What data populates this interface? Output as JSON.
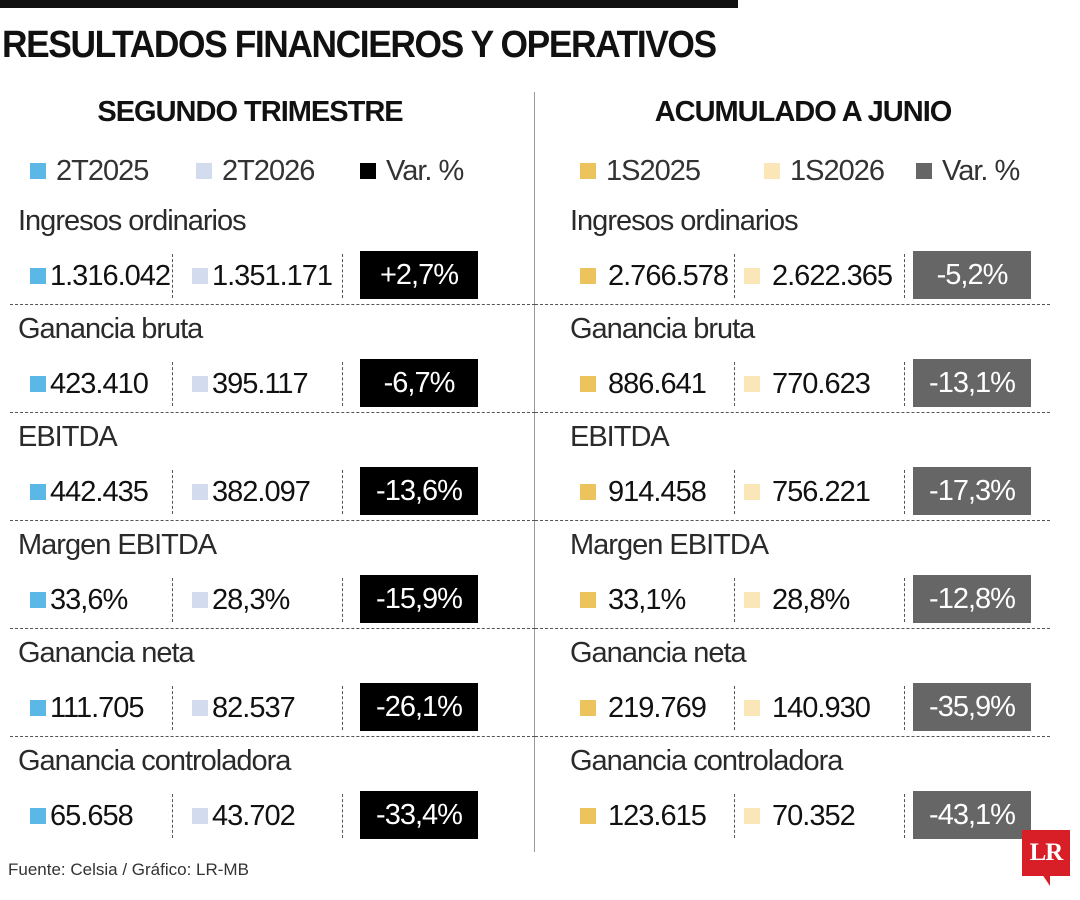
{
  "title": "RESULTADOS FINANCIEROS Y OPERATIVOS",
  "source": "Fuente: Celsia / Gráfico: LR-MB",
  "logo_text": "LR",
  "colors": {
    "q2025": "#5bb8e6",
    "q2026": "#d2dcee",
    "var_q": "#000000",
    "s2025": "#ecc35c",
    "s2026": "#fbe6b8",
    "var_s": "#666666"
  },
  "chart_data": [
    {
      "type": "table",
      "title": "SEGUNDO TRIMESTRE",
      "legend": [
        "2T2025",
        "2T2026",
        "Var. %"
      ],
      "rows": [
        {
          "label": "Ingresos ordinarios",
          "v2025": "1.316.042",
          "v2026": "1.351.171",
          "var": "+2,7%"
        },
        {
          "label": "Ganancia bruta",
          "v2025": "423.410",
          "v2026": "395.117",
          "var": "-6,7%"
        },
        {
          "label": "EBITDA",
          "v2025": "442.435",
          "v2026": "382.097",
          "var": "-13,6%"
        },
        {
          "label": "Margen EBITDA",
          "v2025": "33,6%",
          "v2026": "28,3%",
          "var": "-15,9%"
        },
        {
          "label": "Ganancia neta",
          "v2025": "111.705",
          "v2026": "82.537",
          "var": "-26,1%"
        },
        {
          "label": "Ganancia controladora",
          "v2025": "65.658",
          "v2026": "43.702",
          "var": "-33,4%"
        }
      ]
    },
    {
      "type": "table",
      "title": "ACUMULADO A JUNIO",
      "legend": [
        "1S2025",
        "1S2026",
        "Var. %"
      ],
      "rows": [
        {
          "label": "Ingresos ordinarios",
          "v2025": "2.766.578",
          "v2026": "2.622.365",
          "var": "-5,2%"
        },
        {
          "label": "Ganancia bruta",
          "v2025": "886.641",
          "v2026": "770.623",
          "var": "-13,1%"
        },
        {
          "label": "EBITDA",
          "v2025": "914.458",
          "v2026": "756.221",
          "var": "-17,3%"
        },
        {
          "label": "Margen EBITDA",
          "v2025": "33,1%",
          "v2026": "28,8%",
          "var": "-12,8%"
        },
        {
          "label": "Ganancia neta",
          "v2025": "219.769",
          "v2026": "140.930",
          "var": "-35,9%"
        },
        {
          "label": "Ganancia controladora",
          "v2025": "123.615",
          "v2026": "70.352",
          "var": "-43,1%"
        }
      ]
    }
  ]
}
